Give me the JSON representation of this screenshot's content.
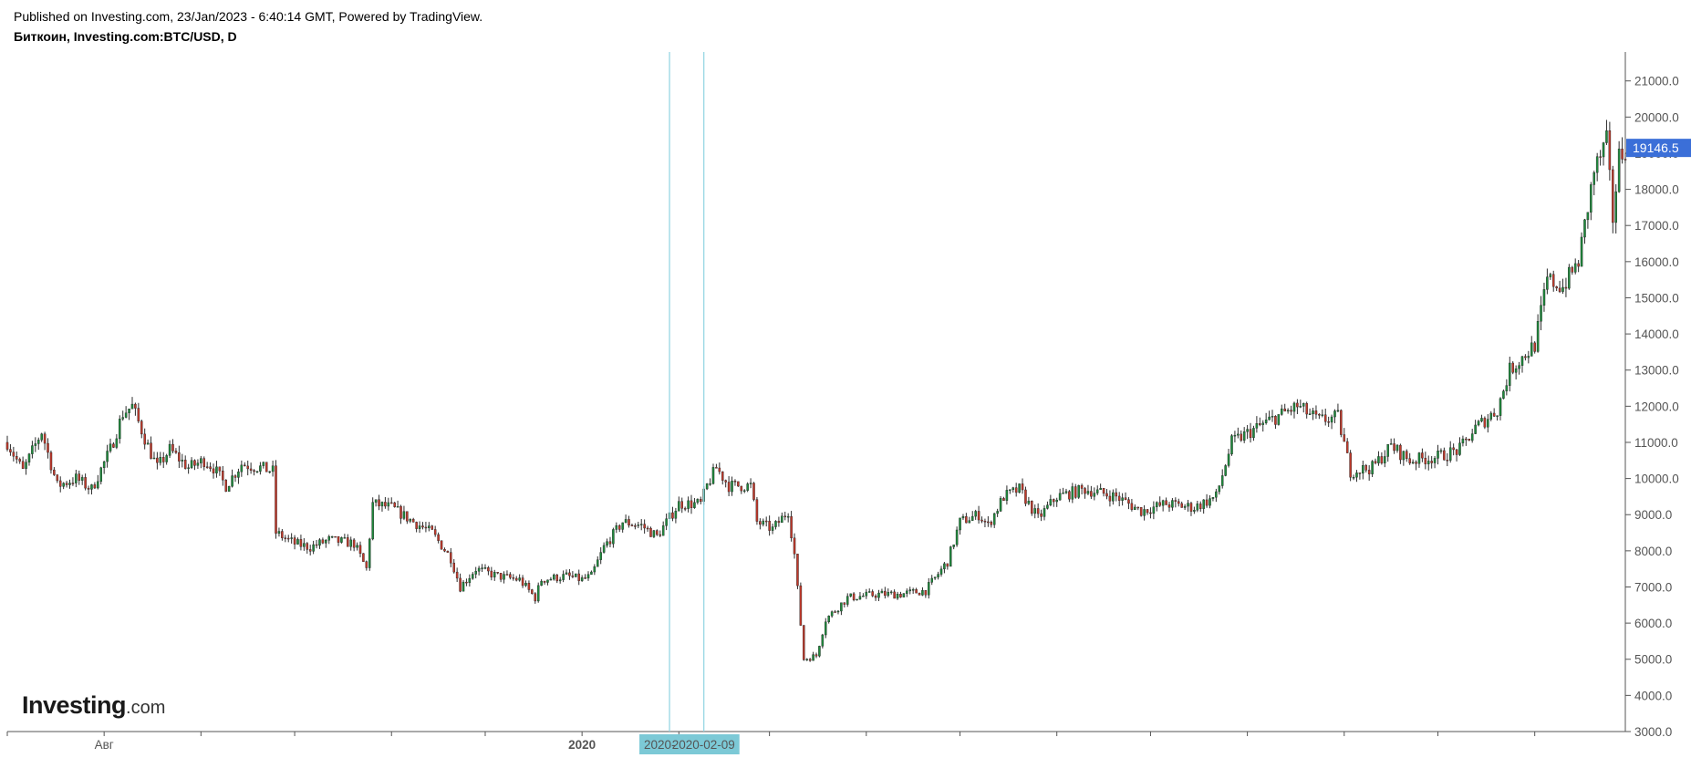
{
  "header": {
    "published": "Published on Investing.com, 23/Jan/2023 - 6:40:14 GMT, Powered by TradingView.",
    "symbol": "Биткоин, Investing.com:BTC/USD, D"
  },
  "logo": {
    "brand": "Investing",
    "tld": ".com"
  },
  "colors": {
    "up": "#1e8a3c",
    "down": "#c0392b",
    "wick": "#2c2c2c",
    "crosshair": "#8fd3e0",
    "price_tag": "#3b6fd8",
    "date_tag": "#7cc9d6",
    "axis": "#555555"
  },
  "chart_data": {
    "type": "candlestick",
    "interval": "D",
    "ylim": [
      3000,
      21800
    ],
    "y_ticks": [
      "3000.0",
      "4000.0",
      "5000.0",
      "6000.0",
      "7000.0",
      "8000.0",
      "9000.0",
      "10000.0",
      "11000.0",
      "12000.0",
      "13000.0",
      "14000.0",
      "15000.0",
      "16000.0",
      "17000.0",
      "18000.0",
      "19000.0",
      "20000.0",
      "21000.0"
    ],
    "x_labels": [
      {
        "label": "Авг",
        "date": "2019-08-01"
      },
      {
        "label": "2020",
        "date": "2020-01-01"
      }
    ],
    "date_range": [
      "2019-07-01",
      "2020-11-30"
    ],
    "last_price": "19146.5",
    "crosshair_dates": [
      "2020-",
      "2020-02-09"
    ],
    "close_path": [
      [
        "2019-07-01",
        11000
      ],
      [
        "2019-07-06",
        10200
      ],
      [
        "2019-07-12",
        11300
      ],
      [
        "2019-07-17",
        9800
      ],
      [
        "2019-07-23",
        10000
      ],
      [
        "2019-07-28",
        9700
      ],
      [
        "2019-08-03",
        10800
      ],
      [
        "2019-08-07",
        11800
      ],
      [
        "2019-08-10",
        12000
      ],
      [
        "2019-08-15",
        10900
      ],
      [
        "2019-08-18",
        10300
      ],
      [
        "2019-08-22",
        10800
      ],
      [
        "2019-08-28",
        10300
      ],
      [
        "2019-09-02",
        10500
      ],
      [
        "2019-09-05",
        10300
      ],
      [
        "2019-09-09",
        9800
      ],
      [
        "2019-09-14",
        10400
      ],
      [
        "2019-09-20",
        10300
      ],
      [
        "2019-09-24",
        10200
      ],
      [
        "2019-09-25",
        8500
      ],
      [
        "2019-10-01",
        8200
      ],
      [
        "2019-10-06",
        8100
      ],
      [
        "2019-10-12",
        8300
      ],
      [
        "2019-10-20",
        8200
      ],
      [
        "2019-10-24",
        7500
      ],
      [
        "2019-10-26",
        9300
      ],
      [
        "2019-11-01",
        9200
      ],
      [
        "2019-11-08",
        8800
      ],
      [
        "2019-11-14",
        8500
      ],
      [
        "2019-11-20",
        7800
      ],
      [
        "2019-11-23",
        7000
      ],
      [
        "2019-11-28",
        7500
      ],
      [
        "2019-12-05",
        7300
      ],
      [
        "2019-12-12",
        7200
      ],
      [
        "2019-12-17",
        6700
      ],
      [
        "2019-12-19",
        7200
      ],
      [
        "2019-12-27",
        7300
      ],
      [
        "2020-01-01",
        7200
      ],
      [
        "2020-01-04",
        7300
      ],
      [
        "2020-01-08",
        8100
      ],
      [
        "2020-01-14",
        8800
      ],
      [
        "2020-01-20",
        8700
      ],
      [
        "2020-01-25",
        8400
      ],
      [
        "2020-02-01",
        9300
      ],
      [
        "2020-02-08",
        9300
      ],
      [
        "2020-02-10",
        9800
      ],
      [
        "2020-02-13",
        10300
      ],
      [
        "2020-02-17",
        9800
      ],
      [
        "2020-02-24",
        9800
      ],
      [
        "2020-02-26",
        8800
      ],
      [
        "2020-03-02",
        8600
      ],
      [
        "2020-03-07",
        9100
      ],
      [
        "2020-03-09",
        7900
      ],
      [
        "2020-03-12",
        5000
      ],
      [
        "2020-03-16",
        5100
      ],
      [
        "2020-03-19",
        6100
      ],
      [
        "2020-03-26",
        6700
      ],
      [
        "2020-04-05",
        6800
      ],
      [
        "2020-04-12",
        6800
      ],
      [
        "2020-04-20",
        6900
      ],
      [
        "2020-04-27",
        7700
      ],
      [
        "2020-05-01",
        8800
      ],
      [
        "2020-05-07",
        9000
      ],
      [
        "2020-05-10",
        8700
      ],
      [
        "2020-05-15",
        9500
      ],
      [
        "2020-05-20",
        9700
      ],
      [
        "2020-05-26",
        8900
      ],
      [
        "2020-06-01",
        9500
      ],
      [
        "2020-06-10",
        9700
      ],
      [
        "2020-06-20",
        9500
      ],
      [
        "2020-06-28",
        9100
      ],
      [
        "2020-07-06",
        9300
      ],
      [
        "2020-07-15",
        9200
      ],
      [
        "2020-07-22",
        9500
      ],
      [
        "2020-07-27",
        11000
      ],
      [
        "2020-08-02",
        11300
      ],
      [
        "2020-08-08",
        11600
      ],
      [
        "2020-08-17",
        12000
      ],
      [
        "2020-08-24",
        11600
      ],
      [
        "2020-08-30",
        11700
      ],
      [
        "2020-09-03",
        10200
      ],
      [
        "2020-09-10",
        10300
      ],
      [
        "2020-09-16",
        10900
      ],
      [
        "2020-09-22",
        10500
      ],
      [
        "2020-10-01",
        10600
      ],
      [
        "2020-10-08",
        10800
      ],
      [
        "2020-10-13",
        11400
      ],
      [
        "2020-10-20",
        11900
      ],
      [
        "2020-10-24",
        13000
      ],
      [
        "2020-11-01",
        13700
      ],
      [
        "2020-11-05",
        15500
      ],
      [
        "2020-11-10",
        15300
      ],
      [
        "2020-11-15",
        16000
      ],
      [
        "2020-11-20",
        18500
      ],
      [
        "2020-11-24",
        19300
      ],
      [
        "2020-11-26",
        17200
      ],
      [
        "2020-11-28",
        18900
      ],
      [
        "2020-11-30",
        19146.5
      ]
    ]
  }
}
